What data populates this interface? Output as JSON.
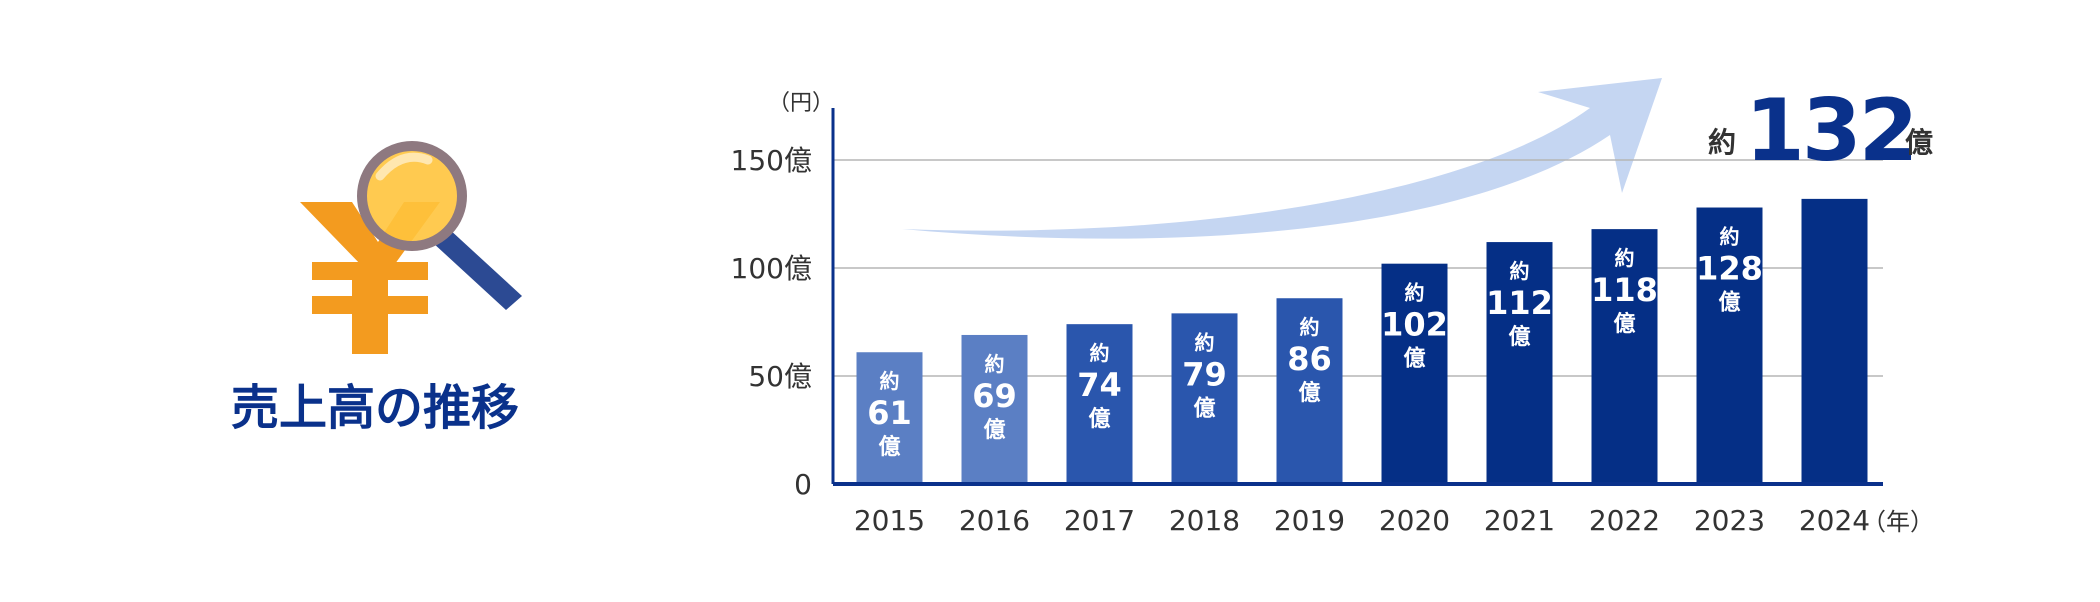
{
  "heading": {
    "title": "売上高の推移",
    "icon": "yen-magnifier-icon"
  },
  "chart_data": {
    "type": "bar",
    "y_unit": "（円）",
    "x_unit": "（年）",
    "categories": [
      "2015",
      "2016",
      "2017",
      "2018",
      "2019",
      "2020",
      "2021",
      "2022",
      "2023",
      "2024"
    ],
    "values": [
      61,
      69,
      74,
      79,
      86,
      102,
      112,
      118,
      128,
      132
    ],
    "ylim": [
      0,
      150
    ],
    "yticks": [
      {
        "value": 0,
        "label": "0"
      },
      {
        "value": 50,
        "label": "50億"
      },
      {
        "value": 100,
        "label": "100億"
      },
      {
        "value": 150,
        "label": "150億"
      }
    ],
    "bar_labels": [
      {
        "prefix": "約",
        "value": "61",
        "suffix": "億"
      },
      {
        "prefix": "約",
        "value": "69",
        "suffix": "億"
      },
      {
        "prefix": "約",
        "value": "74",
        "suffix": "億"
      },
      {
        "prefix": "約",
        "value": "79",
        "suffix": "億"
      },
      {
        "prefix": "約",
        "value": "86",
        "suffix": "億"
      },
      {
        "prefix": "約",
        "value": "102",
        "suffix": "億"
      },
      {
        "prefix": "約",
        "value": "112",
        "suffix": "億"
      },
      {
        "prefix": "約",
        "value": "118",
        "suffix": "億"
      },
      {
        "prefix": "約",
        "value": "128",
        "suffix": "億"
      }
    ],
    "highlight": {
      "prefix": "約",
      "value": "132",
      "suffix": "億"
    },
    "bar_colors": [
      "#5b7fc4",
      "#5b7fc4",
      "#2a56ad",
      "#2a56ad",
      "#2a56ad",
      "#052f86",
      "#052f86",
      "#052f86",
      "#052f86",
      "#052f86"
    ],
    "grid": true
  },
  "colors": {
    "title": "#0a318b",
    "axis": "#0a318b",
    "grid": "#b5b5b5",
    "arrow": "#c5d6f2",
    "yen": "#f39b1f",
    "lens": "#ffc43d",
    "lens_ring": "#8e7980",
    "handle": "#2c4a93",
    "text": "#333333"
  }
}
